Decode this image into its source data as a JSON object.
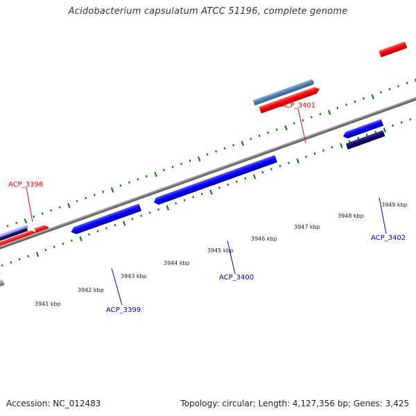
{
  "title": "Acidobacterium capsulatum ATCC 51196, complete genome",
  "accession": "Accession: NC_012483",
  "topology": "Topology: circular; Length: 4,127,356 bp; Genes: 3,425",
  "colors": {
    "forward_label": "#ff0000",
    "reverse_label": "#0000cc",
    "forward_gene": "#ff0000",
    "reverse_gene": "#0000ff",
    "backbone": "#8a8a8a",
    "tick": "#007700"
  },
  "scale_labels": [
    "3941 kbp",
    "3942 kbp",
    "3943 kbp",
    "3944 kbp",
    "3945 kbp",
    "3946 kbp",
    "3947 kbp",
    "3948 kbp",
    "3949 kbp"
  ],
  "gene_labels": {
    "acp_3398": "ACP_3398",
    "acp_3399": "ACP_3399",
    "acp_3400": "ACP_3400",
    "acp_3401": "ACP_3401",
    "acp_3402": "ACP_3402"
  }
}
